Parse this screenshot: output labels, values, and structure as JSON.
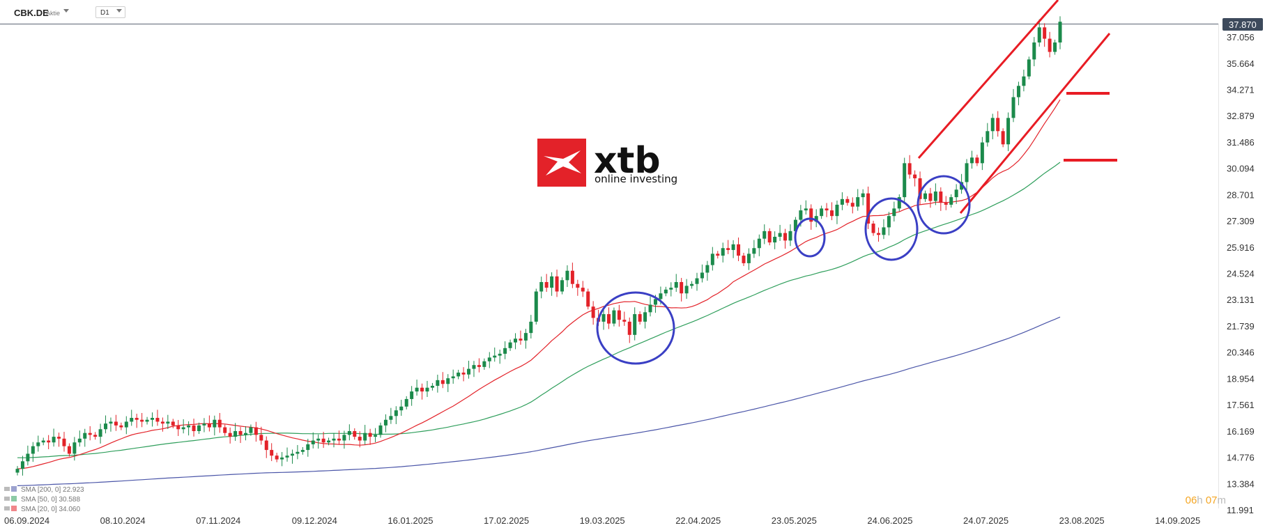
{
  "toolbar": {
    "symbol": "CBK.DE",
    "symbol_type": "Aktie",
    "timeframe": "D1"
  },
  "logo": {
    "name": "xtb",
    "tagline": "online investing"
  },
  "countdown": {
    "h": "06",
    "h_unit": "h",
    "m": "07",
    "m_unit": "m"
  },
  "colors": {
    "up": "#1b8a4b",
    "down": "#e32229",
    "sma20": "#e32229",
    "sma50": "#2e9e5b",
    "sma200": "#4a55a8",
    "annotation": "#e81c24",
    "circle": "#3a3fc4",
    "price_tag": "#3d4a5c"
  },
  "chart_data": {
    "type": "candlestick",
    "last_price": "37.870",
    "y_ticks": [
      "37.056",
      "35.664",
      "34.271",
      "32.879",
      "31.486",
      "30.094",
      "28.701",
      "27.309",
      "25.916",
      "24.524",
      "23.131",
      "21.739",
      "20.346",
      "18.954",
      "17.561",
      "16.169",
      "14.776",
      "13.384",
      "11.991"
    ],
    "x_ticks": [
      "06.09.2024",
      "08.10.2024",
      "07.11.2024",
      "09.12.2024",
      "16.01.2025",
      "17.02.2025",
      "19.03.2025",
      "22.04.2025",
      "23.05.2025",
      "24.06.2025",
      "24.07.2025",
      "23.08.2025",
      "14.09.2025"
    ],
    "ylim": [
      11.991,
      37.87
    ],
    "legend": [
      {
        "label": "SMA [200, 0] 22.923",
        "color": "#4a55a8"
      },
      {
        "label": "SMA [50, 0] 30.588",
        "color": "#2e9e5b"
      },
      {
        "label": "SMA [20, 0] 34.060",
        "color": "#e32229"
      }
    ],
    "closes": [
      14.2,
      14.6,
      15.0,
      15.4,
      15.6,
      15.7,
      15.6,
      15.9,
      15.8,
      15.4,
      15.0,
      15.6,
      15.8,
      16.1,
      16.0,
      15.9,
      16.3,
      16.6,
      16.7,
      16.5,
      16.4,
      16.7,
      16.9,
      16.8,
      16.7,
      16.8,
      16.9,
      16.7,
      16.6,
      16.7,
      16.5,
      16.3,
      16.4,
      16.5,
      16.2,
      16.5,
      16.6,
      16.4,
      16.8,
      16.4,
      16.1,
      15.9,
      16.2,
      16.0,
      16.1,
      16.4,
      16.0,
      15.7,
      15.2,
      14.9,
      14.7,
      14.8,
      14.9,
      15.0,
      15.1,
      15.2,
      15.5,
      15.7,
      15.8,
      15.6,
      15.7,
      15.8,
      15.7,
      16.0,
      16.2,
      15.9,
      15.7,
      16.1,
      15.9,
      16.0,
      16.5,
      16.8,
      17.0,
      17.3,
      17.5,
      17.9,
      18.3,
      18.5,
      18.3,
      18.5,
      18.6,
      18.9,
      18.7,
      19.0,
      19.1,
      19.3,
      19.2,
      19.5,
      19.7,
      19.6,
      19.9,
      20.1,
      20.2,
      20.3,
      20.6,
      20.9,
      21.1,
      21.0,
      21.4,
      22.0,
      23.6,
      24.1,
      23.8,
      24.4,
      23.6,
      24.2,
      24.7,
      24.0,
      23.8,
      23.6,
      22.8,
      22.2,
      22.0,
      22.4,
      21.9,
      22.6,
      22.1,
      22.0,
      21.3,
      22.4,
      22.0,
      22.5,
      22.9,
      23.2,
      23.5,
      23.7,
      23.8,
      24.1,
      23.5,
      23.9,
      24.0,
      24.3,
      24.6,
      25.0,
      25.6,
      25.5,
      25.9,
      25.8,
      26.1,
      25.5,
      25.1,
      25.6,
      25.9,
      26.4,
      26.8,
      26.2,
      26.5,
      26.7,
      26.3,
      26.8,
      27.4,
      27.9,
      28.0,
      27.3,
      27.6,
      28.0,
      27.9,
      27.6,
      28.2,
      28.5,
      28.3,
      28.1,
      28.6,
      28.8,
      27.2,
      26.7,
      26.6,
      27.0,
      27.6,
      28.0,
      28.6,
      30.4,
      29.8,
      29.6,
      28.5,
      28.8,
      28.4,
      28.9,
      28.3,
      28.2,
      28.6,
      29.0,
      29.4,
      30.4,
      30.7,
      30.4,
      31.5,
      32.1,
      32.8,
      32.1,
      31.4,
      32.8,
      33.9,
      34.5,
      35.0,
      35.9,
      36.8,
      37.6,
      37.0,
      36.3,
      36.8,
      37.9
    ]
  }
}
